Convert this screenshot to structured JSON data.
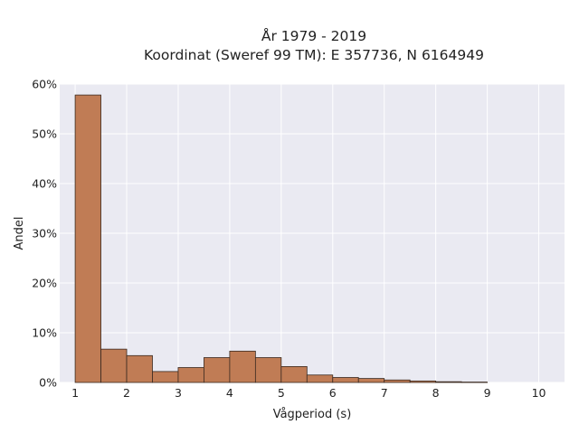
{
  "chart_data": {
    "type": "bar",
    "title": "År 1979 - 2019",
    "subtitle": "Koordinat (Sweref 99 TM): E 357736, N 6164949",
    "xlabel": "Vågperiod (s)",
    "ylabel": "Andel",
    "xlim": [
      0.7,
      10.5
    ],
    "ylim": [
      0,
      60
    ],
    "x_ticks": [
      1,
      2,
      3,
      4,
      5,
      6,
      7,
      8,
      9,
      10
    ],
    "y_ticks": [
      0,
      10,
      20,
      30,
      40,
      50,
      60
    ],
    "y_tick_labels": [
      "0%",
      "10%",
      "20%",
      "30%",
      "40%",
      "50%",
      "60%"
    ],
    "bin_width": 0.5,
    "bins": [
      {
        "start": 1.0,
        "value": 57.8
      },
      {
        "start": 1.5,
        "value": 6.7
      },
      {
        "start": 2.0,
        "value": 5.4
      },
      {
        "start": 2.5,
        "value": 2.2
      },
      {
        "start": 3.0,
        "value": 3.0
      },
      {
        "start": 3.5,
        "value": 5.0
      },
      {
        "start": 4.0,
        "value": 6.3
      },
      {
        "start": 4.5,
        "value": 5.0
      },
      {
        "start": 5.0,
        "value": 3.2
      },
      {
        "start": 5.5,
        "value": 1.5
      },
      {
        "start": 6.0,
        "value": 1.0
      },
      {
        "start": 6.5,
        "value": 0.8
      },
      {
        "start": 7.0,
        "value": 0.5
      },
      {
        "start": 7.5,
        "value": 0.3
      },
      {
        "start": 8.0,
        "value": 0.15
      },
      {
        "start": 8.5,
        "value": 0.08
      }
    ],
    "grid": true,
    "legend": "none",
    "colors": {
      "bar_fill": "#c07c55",
      "bar_edge": "#3a2a20",
      "plot_bg": "#eaeaf2",
      "grid": "#ffffff"
    }
  }
}
